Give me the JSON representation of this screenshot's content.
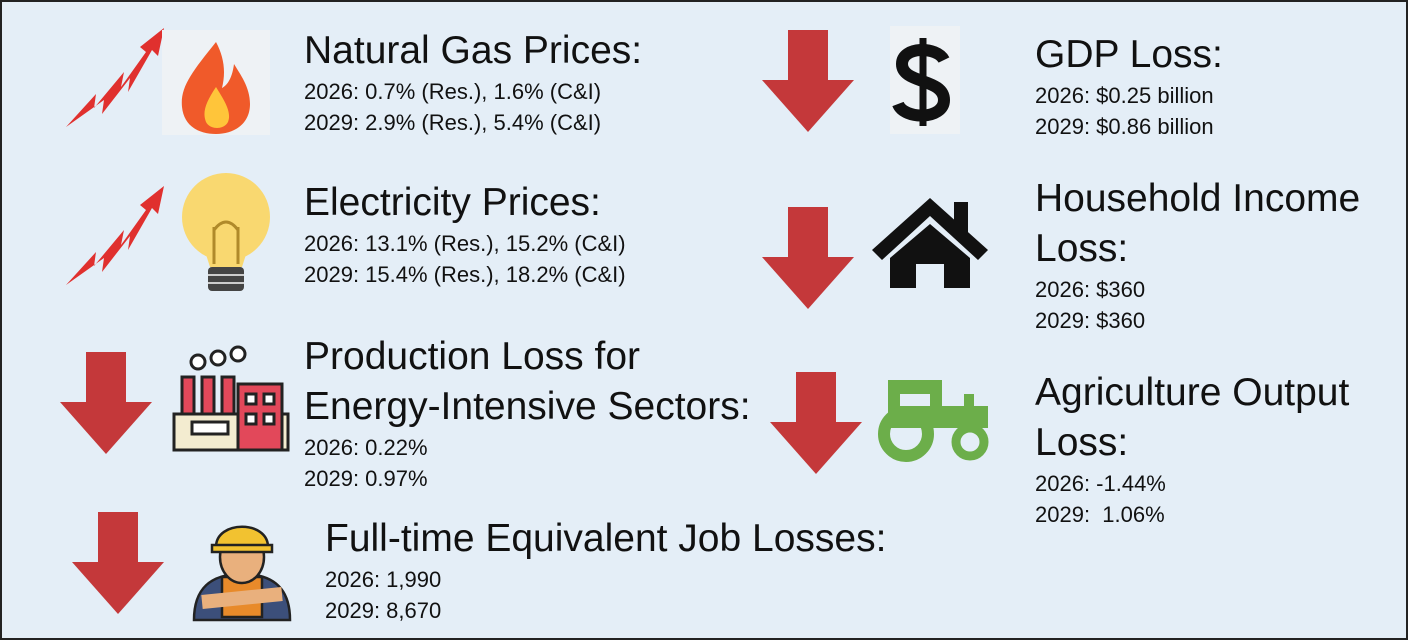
{
  "items": [
    {
      "title": "Natural Gas Prices:",
      "lines": [
        "2026: 0.7% (Res.), 1.6% (C&I)",
        "2029: 2.9% (Res.), 5.4% (C&I)"
      ]
    },
    {
      "title": "Electricity Prices:",
      "lines": [
        "2026: 13.1% (Res.), 15.2% (C&I)",
        "2029: 15.4% (Res.), 18.2% (C&I)"
      ]
    },
    {
      "title": "Production Loss for Energy-Intensive Sectors:",
      "lines": [
        "2026: 0.22%",
        "2029: 0.97%"
      ]
    },
    {
      "title": "Full-time Equivalent Job Losses:",
      "lines": [
        "2026: 1,990",
        "2029: 8,670"
      ]
    },
    {
      "title": "GDP Loss:",
      "lines": [
        "2026: $0.25 billion",
        "2029: $0.86 billion"
      ]
    },
    {
      "title": "Household Income Loss:",
      "lines": [
        "2026: $360",
        "2029: $360"
      ]
    },
    {
      "title": "Agriculture Output Loss:",
      "lines": [
        "2026: -1.44%",
        "2029:  1.06%"
      ]
    }
  ]
}
